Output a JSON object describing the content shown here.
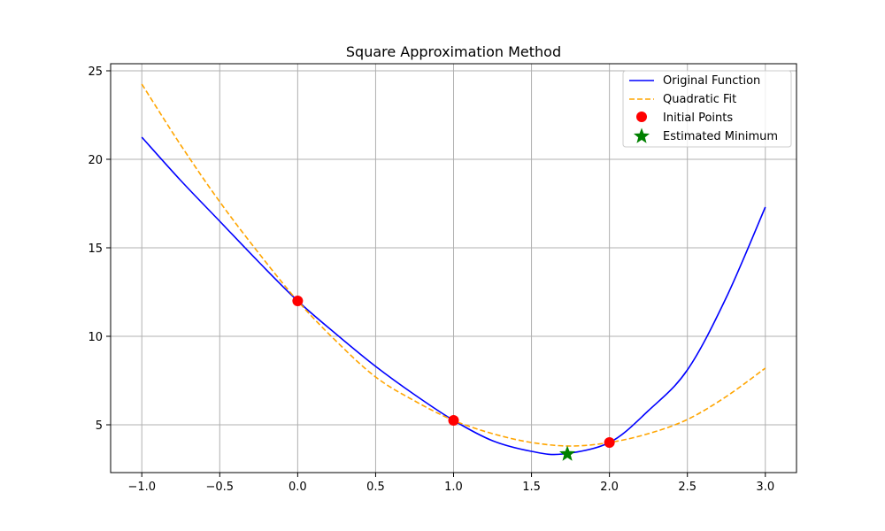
{
  "chart_data": {
    "type": "line",
    "title": "Square Approximation Method",
    "xlabel": "",
    "ylabel": "",
    "xlim": [
      -1.2,
      3.2
    ],
    "ylim": [
      2.3,
      25.4
    ],
    "x_ticks": [
      -1.0,
      -0.5,
      0.0,
      0.5,
      1.0,
      1.5,
      2.0,
      2.5,
      3.0
    ],
    "x_tick_labels": [
      "−1.0",
      "−0.5",
      "0.0",
      "0.5",
      "1.0",
      "1.5",
      "2.0",
      "2.5",
      "3.0"
    ],
    "y_ticks": [
      5,
      10,
      15,
      20,
      25
    ],
    "y_tick_labels": [
      "5",
      "10",
      "15",
      "20",
      "25"
    ],
    "grid": true,
    "legend_position": "top-right",
    "series": [
      {
        "name": "Original Function",
        "style": "solid",
        "color": "#0000ff",
        "x": [
          -1.0,
          -0.75,
          -0.5,
          -0.25,
          0.0,
          0.25,
          0.5,
          0.75,
          1.0,
          1.25,
          1.5,
          1.7,
          2.0,
          2.25,
          2.5,
          2.75,
          3.0
        ],
        "y": [
          21.25,
          18.8,
          16.5,
          14.2,
          12.0,
          10.1,
          8.3,
          6.7,
          5.25,
          4.1,
          3.5,
          3.35,
          4.0,
          5.8,
          8.1,
          12.2,
          17.3
        ]
      },
      {
        "name": "Quadratic Fit",
        "style": "dashed",
        "color": "#ffa500",
        "x": [
          -1.0,
          -0.75,
          -0.5,
          -0.25,
          0.0,
          0.25,
          0.5,
          0.75,
          1.0,
          1.25,
          1.5,
          1.75,
          2.0,
          2.25,
          2.5,
          2.75,
          3.0
        ],
        "y": [
          24.25,
          20.8,
          17.6,
          14.7,
          12.0,
          9.7,
          7.7,
          6.35,
          5.25,
          4.5,
          4.0,
          3.8,
          4.0,
          4.5,
          5.3,
          6.6,
          8.2
        ]
      }
    ],
    "points": [
      {
        "name": "Initial Points",
        "marker": "circle",
        "color": "#ff0000",
        "x": [
          0.0,
          1.0,
          2.0
        ],
        "y": [
          12.0,
          5.25,
          4.0
        ]
      },
      {
        "name": "Estimated Minimum",
        "marker": "star",
        "color": "#008000",
        "x": [
          1.73
        ],
        "y": [
          3.35
        ]
      }
    ]
  }
}
